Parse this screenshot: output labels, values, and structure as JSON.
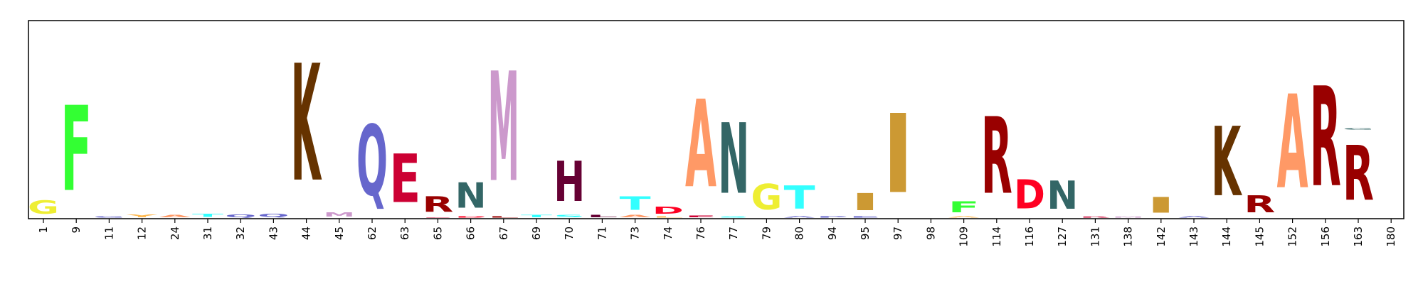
{
  "chart_data": {
    "type": "sequence-logo",
    "title": "",
    "xlabel": "",
    "ylabel": "",
    "ylim": [
      0,
      1
    ],
    "grid": false,
    "legend": "none",
    "positions": [
      "1",
      "9",
      "11",
      "12",
      "24",
      "31",
      "32",
      "43",
      "44",
      "45",
      "62",
      "63",
      "65",
      "66",
      "67",
      "69",
      "70",
      "71",
      "73",
      "74",
      "76",
      "77",
      "79",
      "80",
      "94",
      "95",
      "97",
      "98",
      "109",
      "114",
      "116",
      "127",
      "131",
      "138",
      "142",
      "143",
      "144",
      "145",
      "152",
      "156",
      "163",
      "180"
    ],
    "columns": [
      [
        {
          "letter": "G",
          "height": 0.11,
          "color": "#eeee33"
        }
      ],
      [
        {
          "letter": "F",
          "height": 0.7,
          "color": "#33ff33"
        }
      ],
      [
        {
          "letter": "G",
          "height": 0.012,
          "color": "#6666cc"
        }
      ],
      [
        {
          "letter": "Y",
          "height": 0.022,
          "color": "#ffbb55"
        }
      ],
      [
        {
          "letter": "A",
          "height": 0.02,
          "color": "#ff9966"
        }
      ],
      [
        {
          "letter": "T",
          "height": 0.025,
          "color": "#33ffff"
        }
      ],
      [
        {
          "letter": "Q",
          "height": 0.022,
          "color": "#6666cc"
        }
      ],
      [
        {
          "letter": "Q",
          "height": 0.025,
          "color": "#6666cc"
        }
      ],
      [
        {
          "letter": "K",
          "height": 0.96,
          "color": "#663300"
        }
      ],
      [
        {
          "letter": "M",
          "height": 0.032,
          "color": "#cc99cc"
        }
      ],
      [
        {
          "letter": "Q",
          "height": 0.58,
          "color": "#6666cc"
        }
      ],
      [
        {
          "letter": "E",
          "height": 0.4,
          "color": "#cc0033"
        }
      ],
      [
        {
          "letter": "E",
          "height": 0.005,
          "color": "#cc0033"
        },
        {
          "letter": "R",
          "height": 0.13,
          "color": "#990000"
        }
      ],
      [
        {
          "letter": "D",
          "height": 0.01,
          "color": "#ff0022"
        },
        {
          "letter": "N",
          "height": 0.21,
          "color": "#336666"
        }
      ],
      [
        {
          "letter": "L",
          "height": 0.01,
          "color": "#990000"
        },
        {
          "letter": "M",
          "height": 0.9,
          "color": "#cc99cc"
        }
      ],
      [
        {
          "letter": "T",
          "height": 0.02,
          "color": "#33ffff"
        }
      ],
      [
        {
          "letter": "S",
          "height": 0.02,
          "color": "#33ffff"
        },
        {
          "letter": "H",
          "height": 0.33,
          "color": "#660033"
        }
      ],
      [
        {
          "letter": "L",
          "height": 0.02,
          "color": "#660033"
        }
      ],
      [
        {
          "letter": "A",
          "height": 0.02,
          "color": "#ff9966"
        },
        {
          "letter": "T",
          "height": 0.11,
          "color": "#33ffff"
        }
      ],
      [
        {
          "letter": "L",
          "height": 0.01,
          "color": "#ffbb55"
        },
        {
          "letter": "D",
          "height": 0.055,
          "color": "#ff0022"
        }
      ],
      [
        {
          "letter": "E",
          "height": 0.015,
          "color": "#cc0033"
        },
        {
          "letter": "A",
          "height": 0.72,
          "color": "#ff9966"
        }
      ],
      [
        {
          "letter": "S",
          "height": 0.01,
          "color": "#33ffff"
        },
        {
          "letter": "N",
          "height": 0.58,
          "color": "#336666"
        }
      ],
      [
        {
          "letter": "G",
          "height": 0.21,
          "color": "#eeee33"
        }
      ],
      [
        {
          "letter": "A",
          "height": 0.01,
          "color": "#6666cc"
        },
        {
          "letter": "T",
          "height": 0.19,
          "color": "#33ffff"
        }
      ],
      [
        {
          "letter": "P",
          "height": 0.012,
          "color": "#6666cc"
        }
      ],
      [
        {
          "letter": "E",
          "height": 0.012,
          "color": "#6666cc"
        },
        {
          "letter": "I",
          "height": 0.14,
          "color": "#cc9933"
        }
      ],
      [
        {
          "letter": "I",
          "height": 0.65,
          "color": "#cc9933"
        }
      ],
      [],
      [
        {
          "letter": "A",
          "height": 0.01,
          "color": "#ffbb55"
        },
        {
          "letter": "F",
          "height": 0.09,
          "color": "#33ff33"
        }
      ],
      [
        {
          "letter": "R",
          "height": 0.63,
          "color": "#990000"
        }
      ],
      [
        {
          "letter": "D",
          "height": 0.24,
          "color": "#ff0022"
        }
      ],
      [
        {
          "letter": "N",
          "height": 0.23,
          "color": "#336666"
        }
      ],
      [
        {
          "letter": "R",
          "height": 0.008,
          "color": "#cc0033"
        }
      ],
      [
        {
          "letter": "M",
          "height": 0.008,
          "color": "#cc99cc"
        }
      ],
      [
        {
          "letter": "I",
          "height": 0.13,
          "color": "#cc9933"
        }
      ],
      [
        {
          "letter": "A",
          "height": 0.012,
          "color": "#6666cc"
        }
      ],
      [
        {
          "letter": "K",
          "height": 0.57,
          "color": "#663300"
        }
      ],
      [
        {
          "letter": "R",
          "height": 0.14,
          "color": "#990000"
        }
      ],
      [
        {
          "letter": "A",
          "height": 0.77,
          "color": "#ff9966"
        }
      ],
      [
        {
          "letter": "R",
          "height": 0.82,
          "color": "#990000"
        }
      ],
      [
        {
          "letter": "R",
          "height": 0.45,
          "color": "#990000"
        },
        {
          "letter": "G",
          "height": 0.012,
          "color": "#336666"
        }
      ],
      []
    ]
  }
}
